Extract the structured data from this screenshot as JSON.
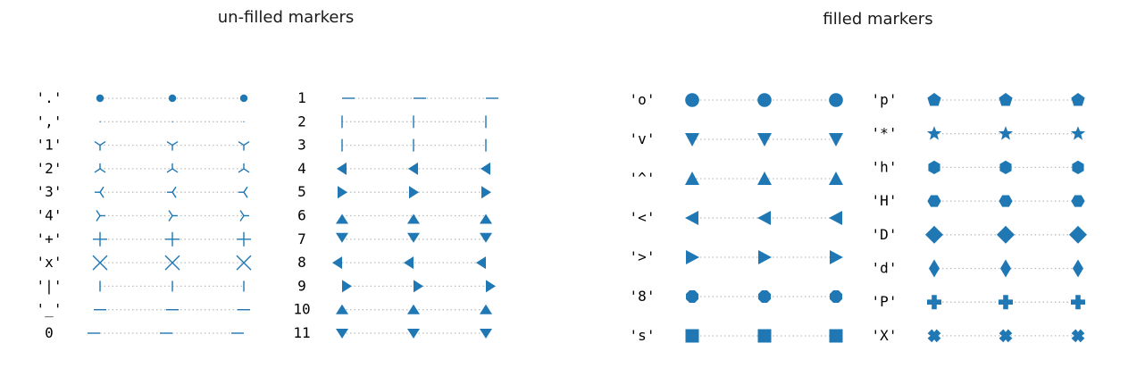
{
  "colors": {
    "marker": "#1f77b4",
    "guide": "#bdbdbd"
  },
  "chart_data": [
    {
      "type": "scatter",
      "title": "un-filled markers",
      "points_per_row": 3,
      "columns": [
        {
          "series": [
            {
              "label": "'.'",
              "marker": "point"
            },
            {
              "label": "','",
              "marker": "pixel"
            },
            {
              "label": "'1'",
              "marker": "tri_down"
            },
            {
              "label": "'2'",
              "marker": "tri_up"
            },
            {
              "label": "'3'",
              "marker": "tri_left"
            },
            {
              "label": "'4'",
              "marker": "tri_right"
            },
            {
              "label": "'+'",
              "marker": "plus"
            },
            {
              "label": "'x'",
              "marker": "x"
            },
            {
              "label": "'|'",
              "marker": "vline"
            },
            {
              "label": "'_'",
              "marker": "hline"
            },
            {
              "label": "0",
              "marker": "tickleft"
            }
          ]
        },
        {
          "series": [
            {
              "label": "1",
              "marker": "tickright"
            },
            {
              "label": "2",
              "marker": "tickup"
            },
            {
              "label": "3",
              "marker": "tickdown"
            },
            {
              "label": "4",
              "marker": "caretleft"
            },
            {
              "label": "5",
              "marker": "caretright"
            },
            {
              "label": "6",
              "marker": "caretup"
            },
            {
              "label": "7",
              "marker": "caretdown"
            },
            {
              "label": "8",
              "marker": "caretleftbase"
            },
            {
              "label": "9",
              "marker": "caretrightbase"
            },
            {
              "label": "10",
              "marker": "caretupbase"
            },
            {
              "label": "11",
              "marker": "caretdownbase"
            }
          ]
        }
      ]
    },
    {
      "type": "scatter",
      "title": "filled markers",
      "points_per_row": 3,
      "columns": [
        {
          "series": [
            {
              "label": "'o'",
              "marker": "circle"
            },
            {
              "label": "'v'",
              "marker": "triangle_down"
            },
            {
              "label": "'^'",
              "marker": "triangle_up"
            },
            {
              "label": "'<'",
              "marker": "triangle_left"
            },
            {
              "label": "'>'",
              "marker": "triangle_right"
            },
            {
              "label": "'8'",
              "marker": "octagon"
            },
            {
              "label": "'s'",
              "marker": "square"
            }
          ]
        },
        {
          "series": [
            {
              "label": "'p'",
              "marker": "pentagon"
            },
            {
              "label": "'*'",
              "marker": "star"
            },
            {
              "label": "'h'",
              "marker": "hexagon1"
            },
            {
              "label": "'H'",
              "marker": "hexagon2"
            },
            {
              "label": "'D'",
              "marker": "diamond"
            },
            {
              "label": "'d'",
              "marker": "thin_diamond"
            },
            {
              "label": "'P'",
              "marker": "plus_filled"
            },
            {
              "label": "'X'",
              "marker": "x_filled"
            }
          ]
        }
      ]
    }
  ]
}
